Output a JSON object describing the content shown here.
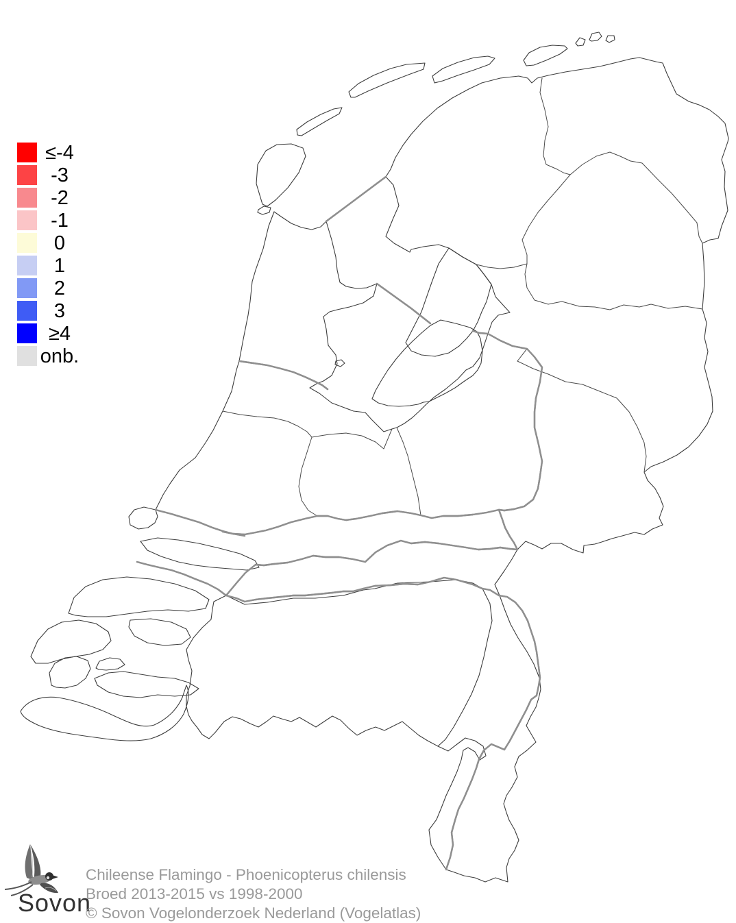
{
  "legend": {
    "items": [
      {
        "label": "≤-4",
        "color": "#ff0000"
      },
      {
        "label": "-3",
        "color": "#fd4345"
      },
      {
        "label": "-2",
        "color": "#f8898e"
      },
      {
        "label": "-1",
        "color": "#fbc5c7"
      },
      {
        "label": "0",
        "color": "#fdfbd8"
      },
      {
        "label": "1",
        "color": "#c6cef3"
      },
      {
        "label": "2",
        "color": "#8199f5"
      },
      {
        "label": "3",
        "color": "#3f5cf5"
      },
      {
        "label": "≥4",
        "color": "#0000ff"
      },
      {
        "label": "onb.",
        "color": "#e0e0e0"
      }
    ]
  },
  "footer": {
    "species_line": "Chileense Flamingo - Phoenicopterus chilensis",
    "period_line": "Broed 2013-2015 vs 1998-2000",
    "copyright_line": "© Sovon Vogelonderzoek Nederland (Vogelatlas)"
  },
  "logo": {
    "text": "Sovon"
  },
  "map": {
    "colors": {
      "outline": "#3d3d3d",
      "water": "#8f8f8f",
      "background": "#ffffff"
    }
  }
}
